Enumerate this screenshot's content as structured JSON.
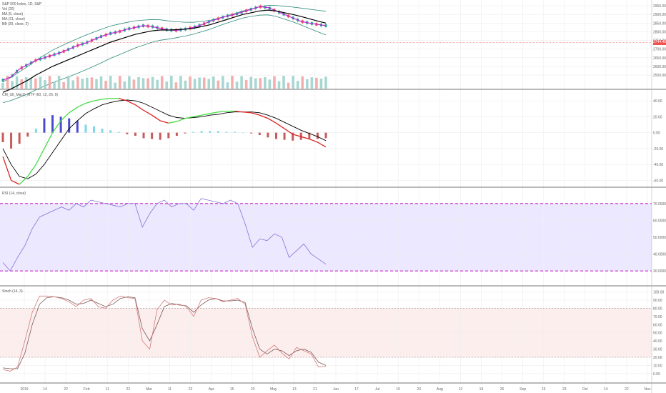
{
  "symbol_title": "S&P 500 Index, 1D, S&P",
  "price_legend": [
    "Vol (20)",
    "MA (5, close)",
    "MA (21, close)",
    "BB (20, close, 2)"
  ],
  "macd_title": "CM_Ult_MacD_MTF (60, 12, 26, 9)",
  "rsi_title": "RSI (14, close)",
  "stoch_title": "Stoch (14, 3)",
  "last_price_label": "2744.45",
  "colors": {
    "up": "#26a69a",
    "down": "#ef5350",
    "vol_down": "#f4a5a5",
    "ma_fast": "#c026d3",
    "ma_slow": "#000000",
    "bb": "#2e8b7a",
    "macd_up": "#44dd44",
    "macd_down": "#dd2222",
    "rsi": "#8b6fd6",
    "rsi_band": "#ece8ff",
    "rsi_line_dash": "#cc22cc",
    "stoch_k": "#d77a7a",
    "stoch_d": "#7a5a5a",
    "stoch_band": "#fdeeee"
  },
  "chart_data": [
    {
      "type": "line",
      "title": "S&P 500 Index, 1D, S&P",
      "series": [
        {
          "name": "MA (5, close)",
          "values": [
            2520,
            2540,
            2585,
            2610,
            2635,
            2650,
            2665,
            2680,
            2700,
            2720,
            2735,
            2755,
            2775,
            2790,
            2800,
            2815,
            2825,
            2835,
            2830,
            2820,
            2810,
            2808,
            2815,
            2825,
            2840,
            2860,
            2875,
            2890,
            2900,
            2915,
            2930,
            2945,
            2940,
            2920,
            2900,
            2880,
            2860,
            2850,
            2842,
            2835
          ]
        },
        {
          "name": "MA (21, close)",
          "values": [
            2450,
            2470,
            2495,
            2520,
            2550,
            2575,
            2600,
            2620,
            2640,
            2660,
            2680,
            2700,
            2720,
            2740,
            2755,
            2770,
            2785,
            2795,
            2805,
            2810,
            2810,
            2812,
            2815,
            2820,
            2830,
            2840,
            2855,
            2870,
            2885,
            2900,
            2910,
            2920,
            2925,
            2920,
            2910,
            2900,
            2888,
            2875,
            2862,
            2850
          ]
        }
      ],
      "y_ticks": [
        "2950.00",
        "2900.00",
        "2850.00",
        "2800.00",
        "2750.00",
        "2700.00",
        "2650.00",
        "2600.00",
        "2550.00"
      ]
    },
    {
      "type": "line",
      "title": "CM_Ult_MacD_MTF (60, 12, 26, 9)",
      "series": [
        {
          "name": "MACD",
          "values": [
            -30,
            -60,
            -65,
            -55,
            -40,
            -20,
            0,
            15,
            25,
            32,
            37,
            40,
            42,
            43,
            43,
            40,
            35,
            28,
            22,
            15,
            12,
            14,
            18,
            20,
            22,
            24,
            26,
            27,
            27,
            26,
            25,
            22,
            18,
            12,
            5,
            -2,
            -5,
            -8,
            -12,
            -18
          ]
        },
        {
          "name": "Signal",
          "values": [
            -20,
            -40,
            -55,
            -58,
            -52,
            -40,
            -25,
            -10,
            5,
            15,
            24,
            30,
            35,
            38,
            40,
            41,
            40,
            37,
            32,
            27,
            22,
            19,
            18,
            19,
            20,
            22,
            23,
            25,
            26,
            26,
            26,
            25,
            22,
            18,
            13,
            8,
            3,
            -1,
            -5,
            -10
          ]
        }
      ],
      "histogram": [
        -12,
        -20,
        -14,
        -5,
        5,
        18,
        22,
        20,
        18,
        15,
        10,
        8,
        5,
        3,
        1,
        -2,
        -4,
        -7,
        -8,
        -9,
        -7,
        -4,
        -1,
        1,
        2,
        2,
        2,
        1,
        1,
        0,
        -1,
        -3,
        -6,
        -8,
        -9,
        -10,
        -9,
        -8,
        -8,
        -7
      ],
      "y_ticks": [
        "40.00",
        "20.00",
        "0.00",
        "-20.00",
        "-40.00",
        "-60.00"
      ]
    },
    {
      "type": "line",
      "title": "RSI (14, close)",
      "series": [
        {
          "name": "RSI",
          "values": [
            35,
            30,
            38,
            45,
            55,
            62,
            64,
            66,
            68,
            66,
            70,
            68,
            72,
            71,
            70,
            69,
            68,
            70,
            70,
            56,
            64,
            70,
            72,
            68,
            70,
            70,
            66,
            73,
            72,
            71,
            70,
            72,
            70,
            58,
            44,
            49,
            48,
            52,
            50,
            38,
            42,
            46,
            40,
            37,
            34
          ]
        }
      ],
      "bands": [
        30,
        70
      ],
      "y_ticks": [
        "70.0000",
        "60.0000",
        "50.0000",
        "40.0000",
        "30.0000"
      ]
    },
    {
      "type": "line",
      "title": "Stoch (14, 3)",
      "series": [
        {
          "name": "%K",
          "values": [
            5,
            3,
            8,
            40,
            75,
            95,
            95,
            94,
            92,
            88,
            82,
            90,
            92,
            82,
            80,
            90,
            95,
            93,
            92,
            40,
            30,
            78,
            90,
            84,
            85,
            82,
            70,
            90,
            93,
            92,
            88,
            90,
            92,
            85,
            45,
            20,
            28,
            35,
            25,
            18,
            32,
            28,
            24,
            8,
            9
          ]
        },
        {
          "name": "%D",
          "values": [
            7,
            6,
            6,
            25,
            60,
            85,
            93,
            94,
            93,
            90,
            85,
            86,
            90,
            86,
            82,
            85,
            92,
            94,
            93,
            55,
            40,
            60,
            82,
            86,
            84,
            83,
            75,
            84,
            90,
            92,
            89,
            89,
            90,
            87,
            55,
            30,
            24,
            30,
            28,
            22,
            28,
            30,
            26,
            14,
            10
          ]
        }
      ],
      "bands": [
        20,
        80
      ],
      "y_ticks": [
        "100.00",
        "90.00",
        "80.00",
        "70.00",
        "60.00",
        "50.00",
        "40.00",
        "30.00",
        "20.00",
        "10.00",
        "0.00"
      ]
    }
  ],
  "x_ticks": [
    "2019",
    "14",
    "22",
    "Feb",
    "11",
    "22",
    "Mar",
    "11",
    "22",
    "Apr",
    "15",
    "23",
    "May",
    "13",
    "21",
    "Jun",
    "17",
    "Jul",
    "15",
    "23",
    "Aug",
    "12",
    "19",
    "26",
    "Sep",
    "16",
    "23",
    "Oct",
    "14",
    "22",
    "Nov"
  ]
}
